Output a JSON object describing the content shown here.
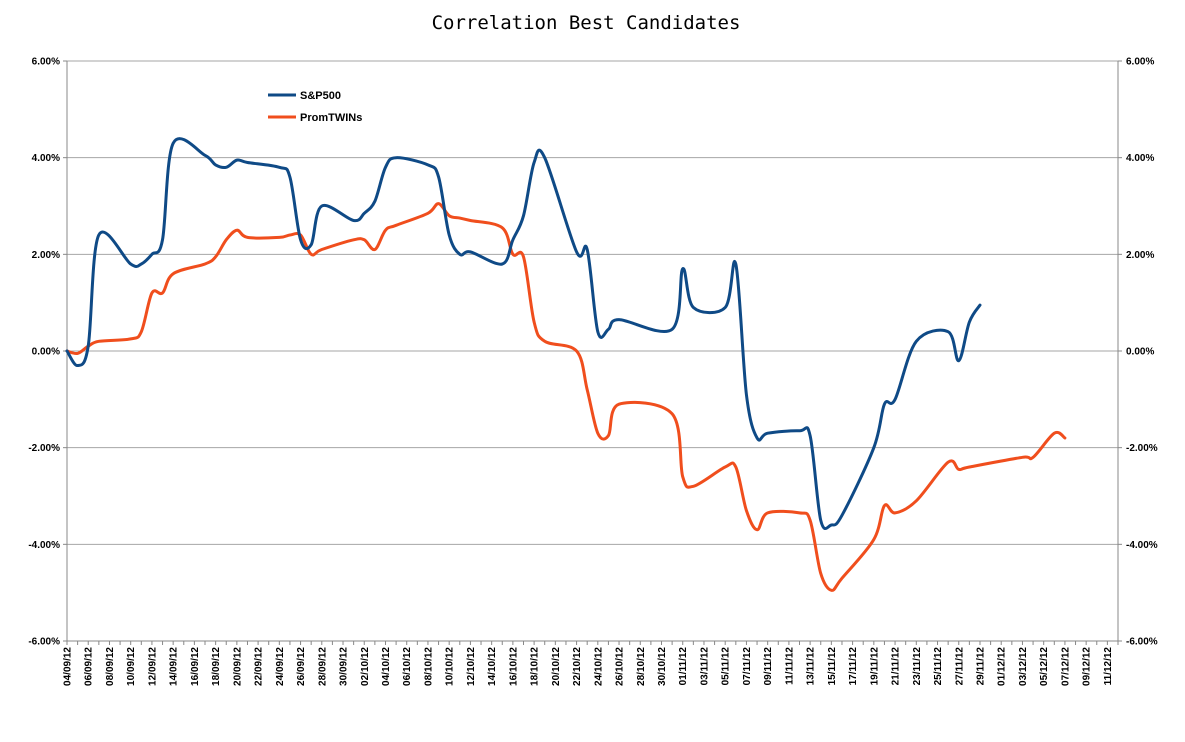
{
  "chart_data": {
    "type": "line",
    "title": "Correlation Best Candidates",
    "xlabel": "",
    "ylabel": "",
    "ylim": [
      -6,
      6
    ],
    "y_ticks": [
      "6.00%",
      "4.00%",
      "2.00%",
      "0.00%",
      "-2.00%",
      "-4.00%",
      "-6.00%"
    ],
    "x_tick_labels": [
      "04/09/12",
      "06/09/12",
      "08/09/12",
      "10/09/12",
      "12/09/12",
      "14/09/12",
      "16/09/12",
      "18/09/12",
      "20/09/12",
      "22/09/12",
      "24/09/12",
      "26/09/12",
      "28/09/12",
      "30/09/12",
      "02/10/12",
      "04/10/12",
      "06/10/12",
      "08/10/12",
      "10/10/12",
      "12/10/12",
      "14/10/12",
      "16/10/12",
      "18/10/12",
      "20/10/12",
      "22/10/12",
      "24/10/12",
      "26/10/12",
      "28/10/12",
      "30/10/12",
      "01/11/12",
      "03/11/12",
      "05/11/12",
      "07/11/12",
      "09/11/12",
      "11/11/12",
      "13/11/12",
      "15/11/12",
      "17/11/12",
      "19/11/12",
      "21/11/12",
      "23/11/12",
      "25/11/12",
      "27/11/12",
      "29/11/12",
      "01/12/12",
      "03/12/12",
      "05/12/12",
      "07/12/12",
      "09/12/12",
      "11/12/12"
    ],
    "x_start": "2012-09-04",
    "x_end": "2012-12-12",
    "grid": true,
    "dual_axis": true,
    "legend_position": "top-left",
    "series": [
      {
        "name": "S&P500",
        "color": "#0f4a86",
        "points": [
          [
            "2012-09-04",
            0.0
          ],
          [
            "2012-09-05",
            -0.3
          ],
          [
            "2012-09-06",
            0.1
          ],
          [
            "2012-09-07",
            2.4
          ],
          [
            "2012-09-10",
            1.8
          ],
          [
            "2012-09-11",
            1.8
          ],
          [
            "2012-09-12",
            2.0
          ],
          [
            "2012-09-13",
            2.3
          ],
          [
            "2012-09-14",
            4.3
          ],
          [
            "2012-09-17",
            4.05
          ],
          [
            "2012-09-18",
            3.85
          ],
          [
            "2012-09-19",
            3.8
          ],
          [
            "2012-09-20",
            3.95
          ],
          [
            "2012-09-21",
            3.9
          ],
          [
            "2012-09-24",
            3.8
          ],
          [
            "2012-09-25",
            3.6
          ],
          [
            "2012-09-26",
            2.3
          ],
          [
            "2012-09-27",
            2.2
          ],
          [
            "2012-09-28",
            3.0
          ],
          [
            "2012-10-01",
            2.7
          ],
          [
            "2012-10-02",
            2.85
          ],
          [
            "2012-10-03",
            3.1
          ],
          [
            "2012-10-04",
            3.8
          ],
          [
            "2012-10-05",
            4.0
          ],
          [
            "2012-10-08",
            3.85
          ],
          [
            "2012-10-09",
            3.6
          ],
          [
            "2012-10-10",
            2.4
          ],
          [
            "2012-10-11",
            2.0
          ],
          [
            "2012-10-12",
            2.05
          ],
          [
            "2012-10-15",
            1.8
          ],
          [
            "2012-10-16",
            2.3
          ],
          [
            "2012-10-17",
            2.8
          ],
          [
            "2012-10-18",
            3.9
          ],
          [
            "2012-10-19",
            4.0
          ],
          [
            "2012-10-22",
            2.05
          ],
          [
            "2012-10-23",
            2.1
          ],
          [
            "2012-10-24",
            0.4
          ],
          [
            "2012-10-25",
            0.45
          ],
          [
            "2012-10-26",
            0.65
          ],
          [
            "2012-10-31",
            0.45
          ],
          [
            "2012-11-01",
            1.7
          ],
          [
            "2012-11-02",
            0.9
          ],
          [
            "2012-11-05",
            0.9
          ],
          [
            "2012-11-06",
            1.8
          ],
          [
            "2012-11-07",
            -0.9
          ],
          [
            "2012-11-08",
            -1.8
          ],
          [
            "2012-11-09",
            -1.7
          ],
          [
            "2012-11-12",
            -1.65
          ],
          [
            "2012-11-13",
            -1.75
          ],
          [
            "2012-11-14",
            -3.5
          ],
          [
            "2012-11-15",
            -3.6
          ],
          [
            "2012-11-16",
            -3.4
          ],
          [
            "2012-11-19",
            -2.0
          ],
          [
            "2012-11-20",
            -1.1
          ],
          [
            "2012-11-21",
            -1.0
          ],
          [
            "2012-11-23",
            0.2
          ],
          [
            "2012-11-26",
            0.4
          ],
          [
            "2012-11-27",
            -0.2
          ],
          [
            "2012-11-28",
            0.6
          ],
          [
            "2012-11-29",
            0.95
          ]
        ]
      },
      {
        "name": "PromTWINs",
        "color": "#f04e1d",
        "points": [
          [
            "2012-09-04",
            0.0
          ],
          [
            "2012-09-05",
            -0.05
          ],
          [
            "2012-09-06",
            0.1
          ],
          [
            "2012-09-07",
            0.2
          ],
          [
            "2012-09-10",
            0.25
          ],
          [
            "2012-09-11",
            0.4
          ],
          [
            "2012-09-12",
            1.2
          ],
          [
            "2012-09-13",
            1.2
          ],
          [
            "2012-09-14",
            1.6
          ],
          [
            "2012-09-17",
            1.8
          ],
          [
            "2012-09-18",
            1.95
          ],
          [
            "2012-09-19",
            2.3
          ],
          [
            "2012-09-20",
            2.5
          ],
          [
            "2012-09-21",
            2.35
          ],
          [
            "2012-09-24",
            2.35
          ],
          [
            "2012-09-25",
            2.4
          ],
          [
            "2012-09-26",
            2.4
          ],
          [
            "2012-09-27",
            2.0
          ],
          [
            "2012-09-28",
            2.1
          ],
          [
            "2012-10-01",
            2.3
          ],
          [
            "2012-10-02",
            2.3
          ],
          [
            "2012-10-03",
            2.1
          ],
          [
            "2012-10-04",
            2.5
          ],
          [
            "2012-10-05",
            2.6
          ],
          [
            "2012-10-08",
            2.85
          ],
          [
            "2012-10-09",
            3.05
          ],
          [
            "2012-10-10",
            2.8
          ],
          [
            "2012-10-11",
            2.75
          ],
          [
            "2012-10-12",
            2.7
          ],
          [
            "2012-10-15",
            2.55
          ],
          [
            "2012-10-16",
            2.0
          ],
          [
            "2012-10-17",
            1.95
          ],
          [
            "2012-10-18",
            0.6
          ],
          [
            "2012-10-19",
            0.2
          ],
          [
            "2012-10-22",
            0.0
          ],
          [
            "2012-10-23",
            -0.8
          ],
          [
            "2012-10-24",
            -1.7
          ],
          [
            "2012-10-25",
            -1.75
          ],
          [
            "2012-10-26",
            -1.1
          ],
          [
            "2012-10-31",
            -1.3
          ],
          [
            "2012-11-01",
            -2.6
          ],
          [
            "2012-11-02",
            -2.8
          ],
          [
            "2012-11-05",
            -2.4
          ],
          [
            "2012-11-06",
            -2.4
          ],
          [
            "2012-11-07",
            -3.3
          ],
          [
            "2012-11-08",
            -3.7
          ],
          [
            "2012-11-09",
            -3.35
          ],
          [
            "2012-11-12",
            -3.35
          ],
          [
            "2012-11-13",
            -3.5
          ],
          [
            "2012-11-14",
            -4.6
          ],
          [
            "2012-11-15",
            -4.95
          ],
          [
            "2012-11-16",
            -4.7
          ],
          [
            "2012-11-19",
            -3.9
          ],
          [
            "2012-11-20",
            -3.2
          ],
          [
            "2012-11-21",
            -3.35
          ],
          [
            "2012-11-23",
            -3.1
          ],
          [
            "2012-11-26",
            -2.3
          ],
          [
            "2012-11-27",
            -2.45
          ],
          [
            "2012-11-28",
            -2.4
          ],
          [
            "2012-12-03",
            -2.2
          ],
          [
            "2012-12-04",
            -2.2
          ],
          [
            "2012-12-06",
            -1.7
          ],
          [
            "2012-12-07",
            -1.8
          ]
        ]
      }
    ]
  }
}
